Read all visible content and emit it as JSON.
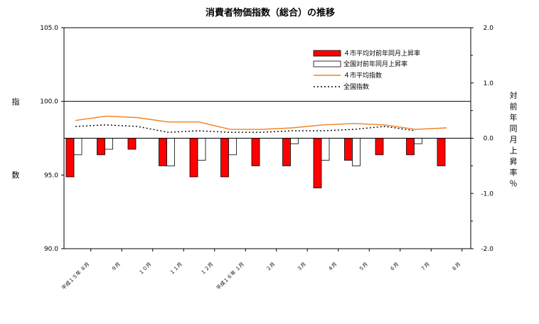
{
  "chart_data": {
    "type": "bar+line",
    "title": "消費者物価指数（総合）の推移",
    "categories": [
      "平成１５年 ８月",
      "９月",
      "１０月",
      "１１月",
      "１２月",
      "平成１６年 １月",
      "２月",
      "３月",
      "４月",
      "５月",
      "６月",
      "７月",
      "８月"
    ],
    "y_left": {
      "label_chars": [
        "指",
        "数"
      ],
      "ylim": [
        90.0,
        105.0
      ],
      "ticks": [
        "90.0",
        "95.0",
        "100.0",
        "105.0"
      ]
    },
    "y_right": {
      "label_chars": [
        "対",
        "前",
        "年",
        "同",
        "月",
        "上",
        "昇",
        "率",
        "％"
      ],
      "ylim": [
        -2.0,
        2.0
      ],
      "ticks": [
        "-2.0",
        "-1.0",
        "0.0",
        "1.0",
        "2.0"
      ]
    },
    "series": [
      {
        "name": "４市平均対前年同月上昇率",
        "kind": "bar",
        "axis": "right",
        "color": "#ff0000",
        "values": [
          -0.7,
          -0.3,
          -0.2,
          -0.5,
          -0.7,
          -0.7,
          -0.5,
          -0.5,
          -0.9,
          -0.4,
          -0.3,
          -0.3,
          -0.5
        ]
      },
      {
        "name": "全国対前年同月上昇率",
        "kind": "bar",
        "axis": "right",
        "color": "#ffffff",
        "values": [
          -0.3,
          -0.2,
          null,
          -0.5,
          -0.4,
          -0.3,
          null,
          -0.1,
          -0.4,
          -0.5,
          null,
          -0.1,
          null
        ]
      },
      {
        "name": "４市平均指数",
        "kind": "line",
        "axis": "left",
        "color": "#f08020",
        "values": [
          98.7,
          99.0,
          98.9,
          98.6,
          98.6,
          98.1,
          98.1,
          98.2,
          98.4,
          98.5,
          98.4,
          98.1,
          98.2
        ]
      },
      {
        "name": "全国指数",
        "kind": "line",
        "axis": "left",
        "style": "dotted",
        "color": "#000000",
        "values": [
          98.3,
          98.4,
          98.3,
          97.9,
          98.0,
          97.9,
          97.9,
          98.0,
          98.0,
          98.1,
          98.3,
          98.0,
          null
        ]
      }
    ],
    "legend_position": "top-right",
    "grid": false
  }
}
